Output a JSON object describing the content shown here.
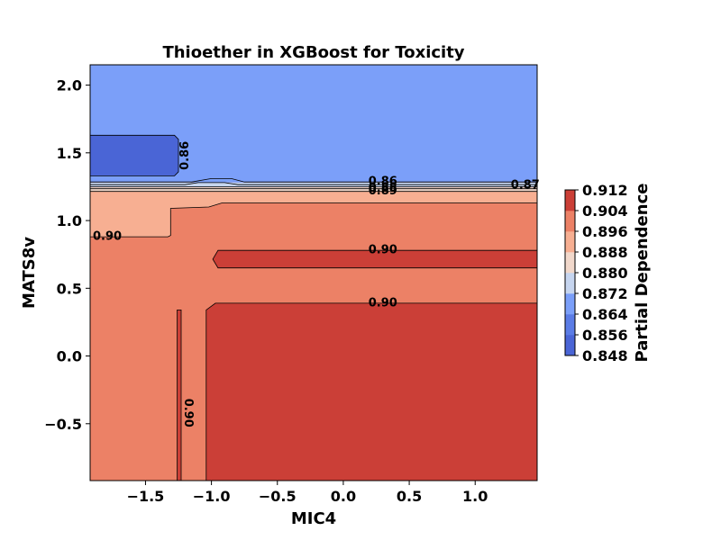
{
  "chart_data": {
    "type": "contour",
    "title": "Thioether in XGBoost for Toxicity",
    "xlabel": "MIC4",
    "ylabel": "MATS8v",
    "xlim": [
      -1.92,
      1.47
    ],
    "ylim": [
      -0.92,
      2.15
    ],
    "xticks": [
      -1.5,
      -1.0,
      -0.5,
      0.0,
      0.5,
      1.0
    ],
    "xtick_labels": [
      "−1.5",
      "−1.0",
      "−0.5",
      "0.0",
      "0.5",
      "1.0"
    ],
    "yticks": [
      -0.5,
      0.0,
      0.5,
      1.0,
      1.5,
      2.0
    ],
    "ytick_labels": [
      "−0.5",
      "0.0",
      "0.5",
      "1.0",
      "1.5",
      "2.0"
    ],
    "colorbar": {
      "label": "Partial Dependence",
      "ticks": [
        0.848,
        0.856,
        0.864,
        0.872,
        0.88,
        0.888,
        0.896,
        0.904,
        0.912
      ],
      "tick_labels": [
        "0.848",
        "0.856",
        "0.864",
        "0.872",
        "0.880",
        "0.888",
        "0.896",
        "0.904",
        "0.912"
      ],
      "levels": [
        {
          "from": 0.848,
          "to": 0.856,
          "color": "#4a65d6"
        },
        {
          "from": 0.856,
          "to": 0.864,
          "color": "#5b7ce6"
        },
        {
          "from": 0.864,
          "to": 0.872,
          "color": "#7b9ff9"
        },
        {
          "from": 0.872,
          "to": 0.88,
          "color": "#c6d5ef"
        },
        {
          "from": 0.88,
          "to": 0.888,
          "color": "#f1d8cb"
        },
        {
          "from": 0.888,
          "to": 0.896,
          "color": "#f7af92"
        },
        {
          "from": 0.896,
          "to": 0.904,
          "color": "#ec8166"
        },
        {
          "from": 0.904,
          "to": 0.912,
          "color": "#cb3f37"
        }
      ]
    },
    "background_color": "#ec8166",
    "regions": [
      {
        "name": "top-band",
        "color": "#7b9ff9",
        "points": [
          [
            -1.92,
            2.15
          ],
          [
            1.47,
            2.15
          ],
          [
            1.47,
            1.28
          ],
          [
            -1.92,
            1.28
          ]
        ]
      },
      {
        "name": "top-left-low",
        "color": "#4a65d6",
        "points": [
          [
            -1.92,
            1.63
          ],
          [
            -1.28,
            1.63
          ],
          [
            -1.25,
            1.6
          ],
          [
            -1.25,
            1.36
          ],
          [
            -1.28,
            1.33
          ],
          [
            -1.92,
            1.33
          ]
        ]
      },
      {
        "name": "transition-1",
        "color": "#c6d5ef",
        "points": [
          [
            -1.92,
            1.28
          ],
          [
            1.47,
            1.28
          ],
          [
            1.47,
            1.245
          ],
          [
            -1.92,
            1.245
          ]
        ]
      },
      {
        "name": "transition-2",
        "color": "#f1d8cb",
        "points": [
          [
            -1.92,
            1.245
          ],
          [
            1.47,
            1.245
          ],
          [
            1.47,
            1.215
          ],
          [
            -1.92,
            1.215
          ]
        ]
      },
      {
        "name": "mid-light",
        "color": "#f7af92",
        "points": [
          [
            -1.92,
            1.215
          ],
          [
            1.47,
            1.215
          ],
          [
            1.47,
            1.13
          ],
          [
            -0.92,
            1.13
          ],
          [
            -1.02,
            1.1
          ],
          [
            -1.3,
            1.09
          ],
          [
            -1.31,
            1.07
          ],
          [
            -1.31,
            0.89
          ],
          [
            -1.33,
            0.88
          ],
          [
            -1.92,
            0.88
          ]
        ]
      },
      {
        "name": "upper-band",
        "color": "#cb3f37",
        "points": [
          [
            -0.95,
            0.78
          ],
          [
            1.47,
            0.78
          ],
          [
            1.47,
            0.65
          ],
          [
            -0.95,
            0.65
          ],
          [
            -0.99,
            0.715
          ]
        ]
      },
      {
        "name": "lower-block",
        "color": "#cb3f37",
        "points": [
          [
            -0.97,
            0.39
          ],
          [
            1.47,
            0.39
          ],
          [
            1.47,
            -0.92
          ],
          [
            -1.04,
            -0.92
          ],
          [
            -1.04,
            0.34
          ]
        ]
      },
      {
        "name": "narrow-strip",
        "color": "#cb3f37",
        "points": [
          [
            -1.26,
            0.34
          ],
          [
            -1.23,
            0.34
          ],
          [
            -1.23,
            -0.92
          ],
          [
            -1.26,
            -0.92
          ]
        ]
      }
    ],
    "contour_lines": [
      [
        [
          -1.92,
          1.63
        ],
        [
          -1.28,
          1.63
        ],
        [
          -1.25,
          1.6
        ],
        [
          -1.25,
          1.36
        ],
        [
          -1.28,
          1.33
        ],
        [
          -1.92,
          1.33
        ]
      ],
      [
        [
          -1.92,
          1.285
        ],
        [
          -1.15,
          1.285
        ],
        [
          -1.0,
          1.31
        ],
        [
          -0.85,
          1.31
        ],
        [
          -0.75,
          1.285
        ],
        [
          1.47,
          1.285
        ]
      ],
      [
        [
          -1.92,
          1.265
        ],
        [
          -1.2,
          1.265
        ],
        [
          -1.1,
          1.28
        ],
        [
          -0.9,
          1.28
        ],
        [
          -0.8,
          1.265
        ],
        [
          1.47,
          1.265
        ]
      ],
      [
        [
          -1.92,
          1.25
        ],
        [
          1.47,
          1.25
        ]
      ],
      [
        [
          -1.92,
          1.235
        ],
        [
          1.47,
          1.235
        ]
      ],
      [
        [
          -1.92,
          1.215
        ],
        [
          1.47,
          1.215
        ]
      ],
      [
        [
          -1.92,
          0.88
        ],
        [
          -1.33,
          0.88
        ],
        [
          -1.31,
          0.89
        ],
        [
          -1.31,
          1.09
        ],
        [
          -1.02,
          1.1
        ],
        [
          -0.92,
          1.13
        ],
        [
          1.47,
          1.13
        ]
      ],
      [
        [
          1.47,
          0.78
        ],
        [
          -0.95,
          0.78
        ],
        [
          -0.99,
          0.715
        ],
        [
          -0.95,
          0.65
        ],
        [
          1.47,
          0.65
        ]
      ],
      [
        [
          1.47,
          0.39
        ],
        [
          -0.97,
          0.39
        ],
        [
          -1.04,
          0.34
        ],
        [
          -1.04,
          -0.92
        ]
      ],
      [
        [
          -1.26,
          -0.92
        ],
        [
          -1.26,
          0.34
        ],
        [
          -1.23,
          0.34
        ],
        [
          -1.23,
          -0.92
        ]
      ]
    ],
    "contour_labels": [
      {
        "text": "0.86",
        "x": -1.2,
        "y": 1.48,
        "rotate": -90
      },
      {
        "text": "0.86",
        "x": 0.3,
        "y": 1.285,
        "rotate": 0
      },
      {
        "text": "0.88",
        "x": 0.3,
        "y": 1.235,
        "rotate": 0
      },
      {
        "text": "0.89",
        "x": 0.3,
        "y": 1.215,
        "rotate": 0
      },
      {
        "text": "0.87",
        "x": 1.38,
        "y": 1.26,
        "rotate": 0
      },
      {
        "text": "0.90",
        "x": -1.79,
        "y": 0.88,
        "rotate": 0
      },
      {
        "text": "0.90",
        "x": 0.3,
        "y": 0.78,
        "rotate": 0
      },
      {
        "text": "0.90",
        "x": 0.3,
        "y": 0.39,
        "rotate": 0
      },
      {
        "text": "0.90",
        "x": -1.18,
        "y": -0.42,
        "rotate": 90
      }
    ]
  }
}
